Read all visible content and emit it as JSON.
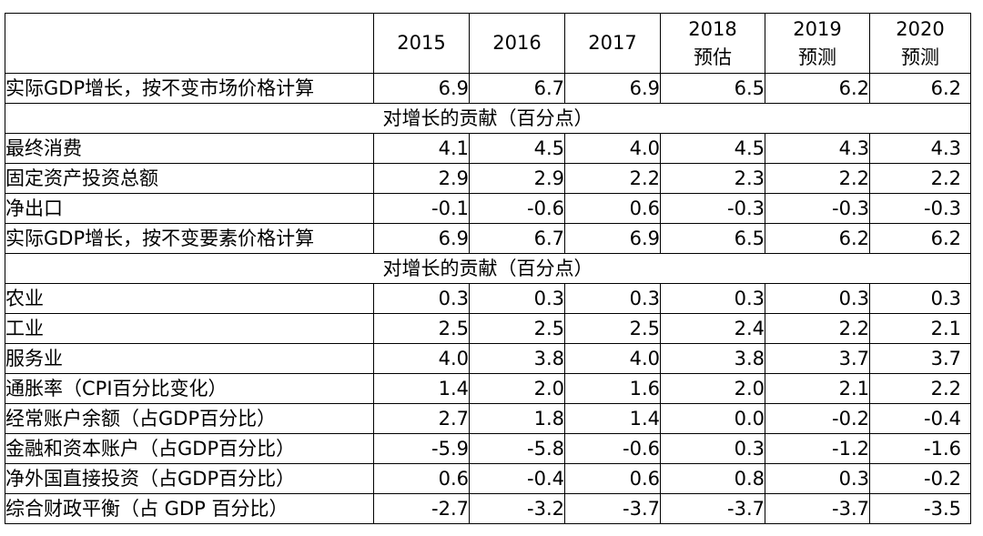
{
  "table": {
    "columns": [
      "",
      "2015",
      "2016",
      "2017",
      "2018\n预估",
      "2019\n预测",
      "2020\n预测"
    ],
    "header": {
      "corner": "",
      "y2015": "2015",
      "y2016": "2016",
      "y2017": "2017",
      "y2018": "2018",
      "y2018_note": "预估",
      "y2019": "2019",
      "y2019_note": "预测",
      "y2020": "2020",
      "y2020_note": "预测"
    },
    "rows": [
      {
        "label": "实际GDP增长，按不变市场价格计算",
        "values": [
          "6.9",
          "6.7",
          "6.9",
          "6.5",
          "6.2",
          "6.2"
        ]
      },
      {
        "section": "对增长的贡献（百分点）"
      },
      {
        "label": "最终消费",
        "values": [
          "4.1",
          "4.5",
          "4.0",
          "4.5",
          "4.3",
          "4.3"
        ]
      },
      {
        "label": "固定资产投资总额",
        "values": [
          "2.9",
          "2.9",
          "2.2",
          "2.3",
          "2.2",
          "2.2"
        ]
      },
      {
        "label": "净出口",
        "values": [
          "-0.1",
          "-0.6",
          "0.6",
          "-0.3",
          "-0.3",
          "-0.3"
        ]
      },
      {
        "label": "实际GDP增长，按不变要素价格计算",
        "values": [
          "6.9",
          "6.7",
          "6.9",
          "6.5",
          "6.2",
          "6.2"
        ]
      },
      {
        "section": "对增长的贡献（百分点）"
      },
      {
        "label": "农业",
        "values": [
          "0.3",
          "0.3",
          "0.3",
          "0.3",
          "0.3",
          "0.3"
        ]
      },
      {
        "label": "工业",
        "values": [
          "2.5",
          "2.5",
          "2.5",
          "2.4",
          "2.2",
          "2.1"
        ]
      },
      {
        "label": "服务业",
        "values": [
          "4.0",
          "3.8",
          "4.0",
          "3.8",
          "3.7",
          "3.7"
        ]
      },
      {
        "label": "通胀率（CPI百分比变化）",
        "values": [
          "1.4",
          "2.0",
          "1.6",
          "2.0",
          "2.1",
          "2.2"
        ]
      },
      {
        "label": "经常账户余额（占GDP百分比）",
        "values": [
          "2.7",
          "1.8",
          "1.4",
          "0.0",
          "-0.2",
          "-0.4"
        ]
      },
      {
        "label": "金融和资本账户（占GDP百分比）",
        "values": [
          "-5.9",
          "-5.8",
          "-0.6",
          "0.3",
          "-1.2",
          "-1.6"
        ]
      },
      {
        "label": "净外国直接投资（占GDP百分比）",
        "values": [
          "0.6",
          "-0.4",
          "0.6",
          "0.8",
          "0.3",
          "-0.2"
        ]
      },
      {
        "label": "综合财政平衡（占 GDP 百分比）",
        "values": [
          "-2.7",
          "-3.2",
          "-3.7",
          "-3.7",
          "-3.7",
          "-3.5"
        ]
      }
    ]
  }
}
